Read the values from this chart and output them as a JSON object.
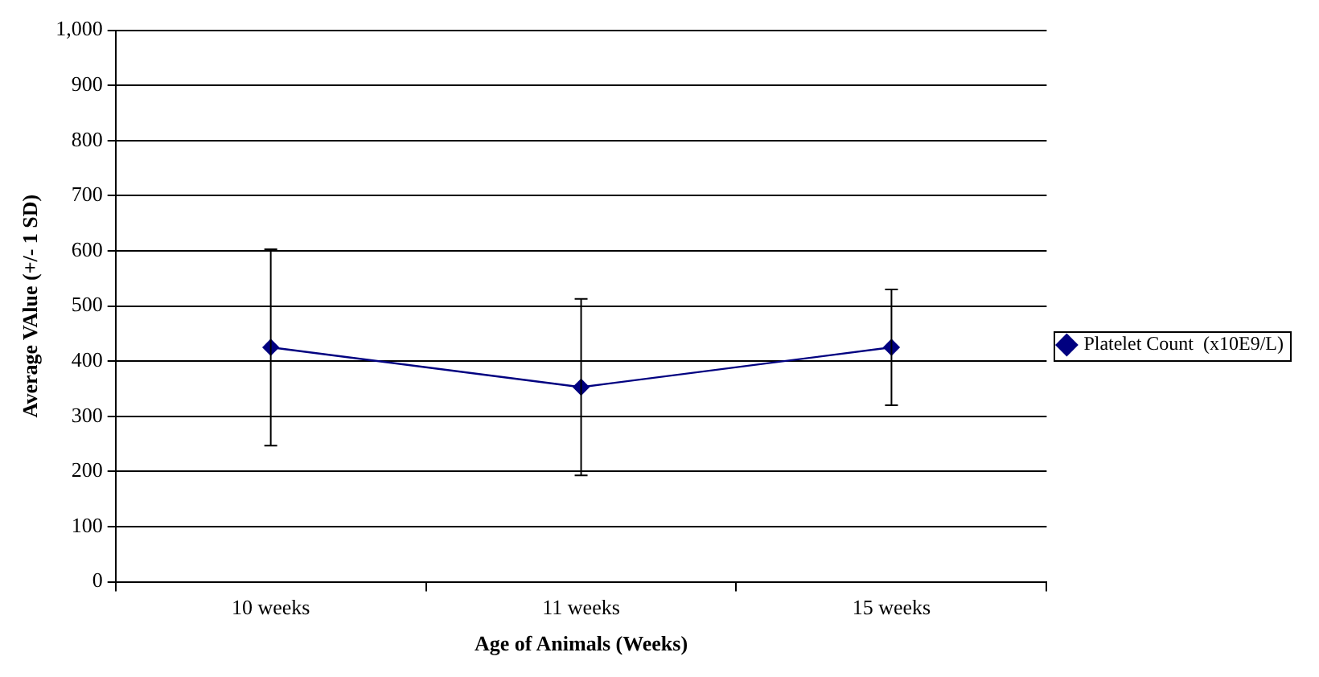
{
  "chart_data": {
    "type": "line",
    "xlabel": "Age of Animals (Weeks)",
    "ylabel": "Average VAlue (+/- 1 SD)",
    "categories": [
      "10 weeks",
      "11 weeks",
      "15 weeks"
    ],
    "series": [
      {
        "name": "Platelet Count  (x10E9/L)",
        "color": "#000080",
        "values": [
          425,
          353,
          425
        ],
        "errors": [
          178,
          160,
          105
        ]
      }
    ],
    "ylim": [
      0,
      1000
    ],
    "yticks": [
      0,
      100,
      200,
      300,
      400,
      500,
      600,
      700,
      800,
      900,
      {
        "value": 1000,
        "label": "1,000"
      }
    ],
    "grid": "y",
    "legend": "right",
    "marker": "diamond",
    "line_style": "solid"
  }
}
